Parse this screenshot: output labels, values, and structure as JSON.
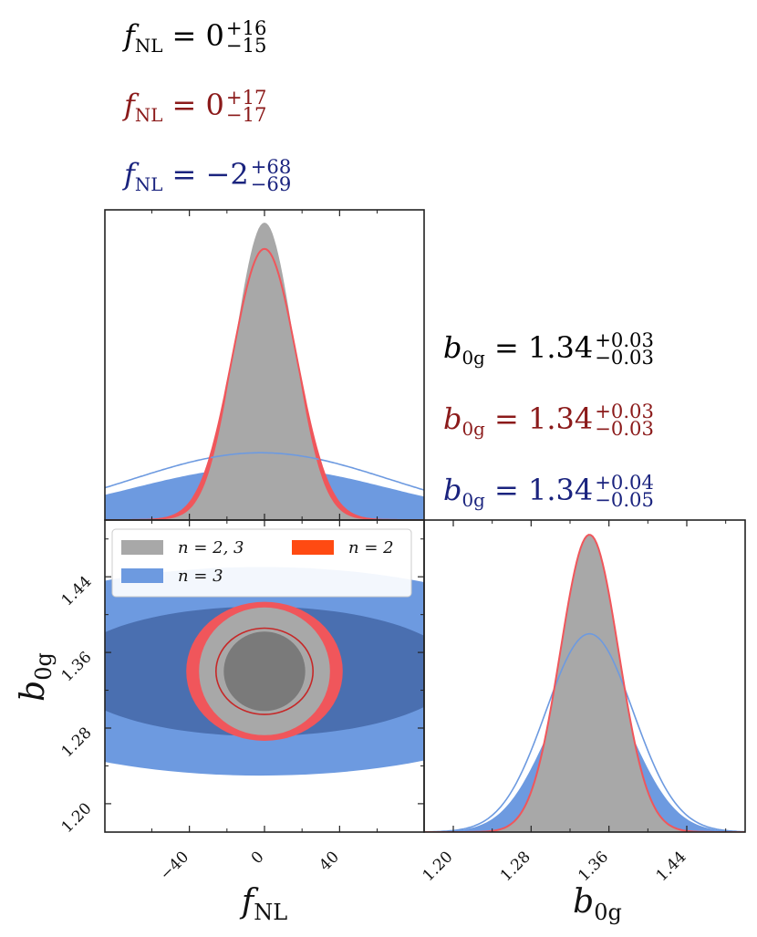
{
  "colors": {
    "combined": "#a8a8a8",
    "combined_dark": "#7a7a7a",
    "n2": "#f0565b",
    "n2_dark": "#c62828",
    "n3": "#6d9ae0",
    "n3_dark": "#4a6fb0",
    "legend_n2_swatch": "#ff4a12",
    "text_combined": "#000000",
    "text_n2": "#8b1a1a",
    "text_n3": "#1a237e"
  },
  "summaries": {
    "fnl": [
      {
        "series": "n=2,3",
        "sym": "f",
        "sub": "NL",
        "value": "0",
        "plus": "+16",
        "minus": "−15"
      },
      {
        "series": "n=2",
        "sym": "f",
        "sub": "NL",
        "value": "0",
        "plus": "+17",
        "minus": "−17"
      },
      {
        "series": "n=3",
        "sym": "f",
        "sub": "NL",
        "value": "−2",
        "plus": "+68",
        "minus": "−69"
      }
    ],
    "b0g": [
      {
        "series": "n=2,3",
        "sym": "b",
        "sub": "0g",
        "value": "1.34",
        "plus": "+0.03",
        "minus": "−0.03"
      },
      {
        "series": "n=2",
        "sym": "b",
        "sub": "0g",
        "value": "1.34",
        "plus": "+0.03",
        "minus": "−0.03"
      },
      {
        "series": "n=3",
        "sym": "b",
        "sub": "0g",
        "value": "1.34",
        "plus": "+0.04",
        "minus": "−0.05"
      }
    ]
  },
  "legend": {
    "entries": [
      {
        "label": "n = 2, 3",
        "color_key": "combined"
      },
      {
        "label": "n = 2",
        "color_key": "legend_n2_swatch"
      },
      {
        "label": "n = 3",
        "color_key": "n3"
      }
    ]
  },
  "axis_labels": {
    "fnl": {
      "sym": "f",
      "sub": "NL"
    },
    "b0g": {
      "sym": "b",
      "sub": "0g"
    }
  },
  "chart_data": {
    "type": "corner",
    "parameters": [
      "fNL",
      "b0g"
    ],
    "ranges": {
      "fNL": [
        -85,
        85
      ],
      "b0g": [
        1.17,
        1.5
      ]
    },
    "ticks": {
      "fNL": {
        "values": [
          -40,
          0,
          40
        ],
        "labels": [
          "−40",
          "0",
          "40"
        ]
      },
      "b0g": {
        "values": [
          1.2,
          1.28,
          1.36,
          1.44
        ],
        "labels": [
          "1.20",
          "1.28",
          "1.36",
          "1.44"
        ]
      }
    },
    "series": [
      {
        "name": "n = 2, 3",
        "color_key": "combined",
        "fNL": {
          "mean": 0,
          "sigma": 15.5
        },
        "b0g": {
          "mean": 1.34,
          "sigma": 0.03
        }
      },
      {
        "name": "n = 2",
        "color_key": "n2",
        "fNL": {
          "mean": 0,
          "sigma": 17
        },
        "b0g": {
          "mean": 1.34,
          "sigma": 0.03
        }
      },
      {
        "name": "n = 3",
        "color_key": "n3",
        "fNL": {
          "mean": -2,
          "sigma": 68.5
        },
        "b0g": {
          "mean": 1.34,
          "sigma": 0.045
        }
      }
    ]
  }
}
